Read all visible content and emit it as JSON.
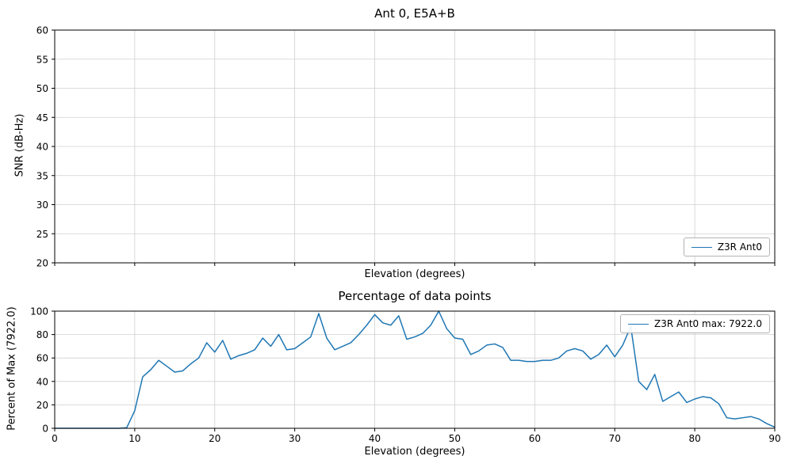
{
  "chart_data": [
    {
      "type": "line",
      "title": "Ant 0, E5A+B",
      "xlabel": "Elevation (degrees)",
      "ylabel": "SNR (dB-Hz)",
      "xlim": [
        0,
        90
      ],
      "ylim": [
        20,
        60
      ],
      "xticks": [
        0,
        10,
        20,
        30,
        40,
        50,
        60,
        70,
        80,
        90
      ],
      "yticks": [
        20,
        25,
        30,
        35,
        40,
        45,
        50,
        55,
        60
      ],
      "xtick_labels_visible": false,
      "grid": true,
      "line_color": "#1f77b4",
      "legend": {
        "position": "lower right",
        "label": "Z3R Ant0"
      },
      "series": [
        {
          "name": "Z3R Ant0",
          "x": [],
          "y": []
        }
      ]
    },
    {
      "type": "line",
      "title": "Percentage of data points",
      "xlabel": "Elevation (degrees)",
      "ylabel": "Percent of Max (7922.0)",
      "max_value": "7922.0",
      "xlim": [
        0,
        90
      ],
      "ylim": [
        0,
        100
      ],
      "xticks": [
        0,
        10,
        20,
        30,
        40,
        50,
        60,
        70,
        80,
        90
      ],
      "yticks": [
        0,
        20,
        40,
        60,
        80,
        100
      ],
      "xtick_labels_visible": true,
      "grid": true,
      "line_color": "#1f77b4",
      "legend": {
        "position": "upper right",
        "label": "Z3R Ant0 max: 7922.0"
      },
      "series": [
        {
          "name": "Z3R Ant0",
          "x": [
            0,
            1,
            2,
            3,
            4,
            5,
            6,
            7,
            8,
            9,
            10,
            11,
            12,
            13,
            14,
            15,
            16,
            17,
            18,
            19,
            20,
            21,
            22,
            23,
            24,
            25,
            26,
            27,
            28,
            29,
            30,
            31,
            32,
            33,
            34,
            35,
            36,
            37,
            38,
            39,
            40,
            41,
            42,
            43,
            44,
            45,
            46,
            47,
            48,
            49,
            50,
            51,
            52,
            53,
            54,
            55,
            56,
            57,
            58,
            59,
            60,
            61,
            62,
            63,
            64,
            65,
            66,
            67,
            68,
            69,
            70,
            71,
            72,
            73,
            74,
            75,
            76,
            77,
            78,
            79,
            80,
            81,
            82,
            83,
            84,
            85,
            86,
            87,
            88,
            89,
            90
          ],
          "y": [
            0,
            0,
            0,
            0,
            0,
            0,
            0,
            0,
            0,
            0.5,
            15,
            44,
            50,
            58,
            53,
            48,
            49,
            55,
            60,
            73,
            65,
            75,
            59,
            62,
            64,
            67,
            77,
            70,
            80,
            67,
            68,
            73,
            78,
            98,
            77,
            67,
            70,
            73,
            80,
            88,
            97,
            90,
            88,
            96,
            76,
            78,
            81,
            88,
            100,
            85,
            77,
            76,
            63,
            66,
            71,
            72,
            69,
            58,
            58,
            57,
            57,
            58,
            58,
            60,
            66,
            68,
            66,
            59,
            63,
            71,
            61,
            71,
            87,
            40,
            33,
            46,
            23,
            27,
            31,
            22,
            25,
            27,
            26,
            21,
            9,
            8,
            9,
            10,
            8,
            4,
            1
          ]
        }
      ]
    }
  ],
  "style": {
    "grid_color": "#d0d0d0",
    "axis_color": "#000000",
    "background": "#ffffff"
  }
}
